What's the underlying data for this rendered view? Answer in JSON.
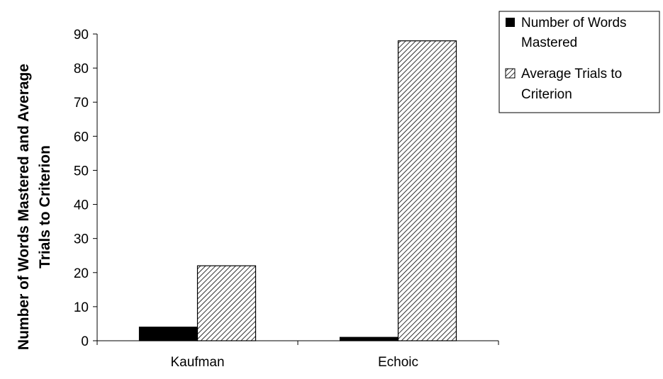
{
  "chart_data": {
    "type": "bar",
    "categories": [
      "Kaufman",
      "Echoic"
    ],
    "series": [
      {
        "name": "Number of Words Mastered",
        "values": [
          4,
          1
        ],
        "pattern": "solid",
        "color": "#000000"
      },
      {
        "name": "Average Trials to Criterion",
        "values": [
          22,
          88
        ],
        "pattern": "diagonal-hatch",
        "color": "#000000"
      }
    ],
    "title": "",
    "xlabel": "",
    "ylabel": [
      "Number of Words Mastered and Average",
      "Trials to Criterion"
    ],
    "ylim": [
      0,
      90
    ],
    "yticks": [
      0,
      10,
      20,
      30,
      40,
      50,
      60,
      70,
      80,
      90
    ],
    "legend": {
      "position": "top-right",
      "entries": [
        {
          "lines": [
            "Number of Words",
            "Mastered"
          ]
        },
        {
          "lines": [
            "Average Trials to",
            "Criterion"
          ]
        }
      ]
    },
    "grid": false
  }
}
